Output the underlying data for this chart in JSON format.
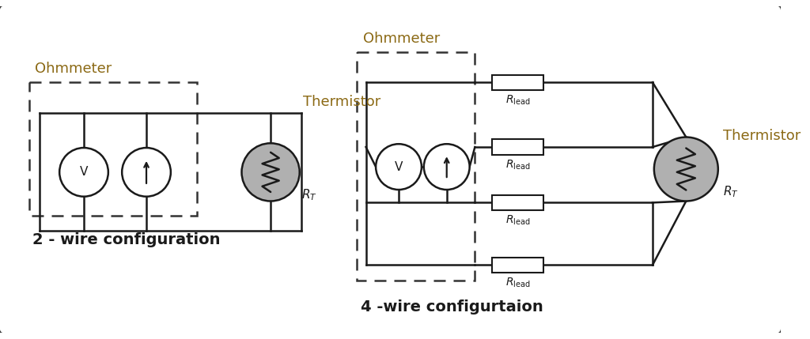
{
  "title_color": "#8B6914",
  "background_color": "#ffffff",
  "border_color": "#2a2a2a",
  "wire_color": "#1a1a1a",
  "dashed_box_color": "#333333",
  "component_fill": "#b0b0b0",
  "fig_width": 10.24,
  "fig_height": 4.29,
  "ohmmeter_label": "Ohmmeter",
  "thermistor_label": "Thermistor",
  "config_2wire": "2 - wire configuration",
  "config_4wire": "4 -wire configurtaion"
}
